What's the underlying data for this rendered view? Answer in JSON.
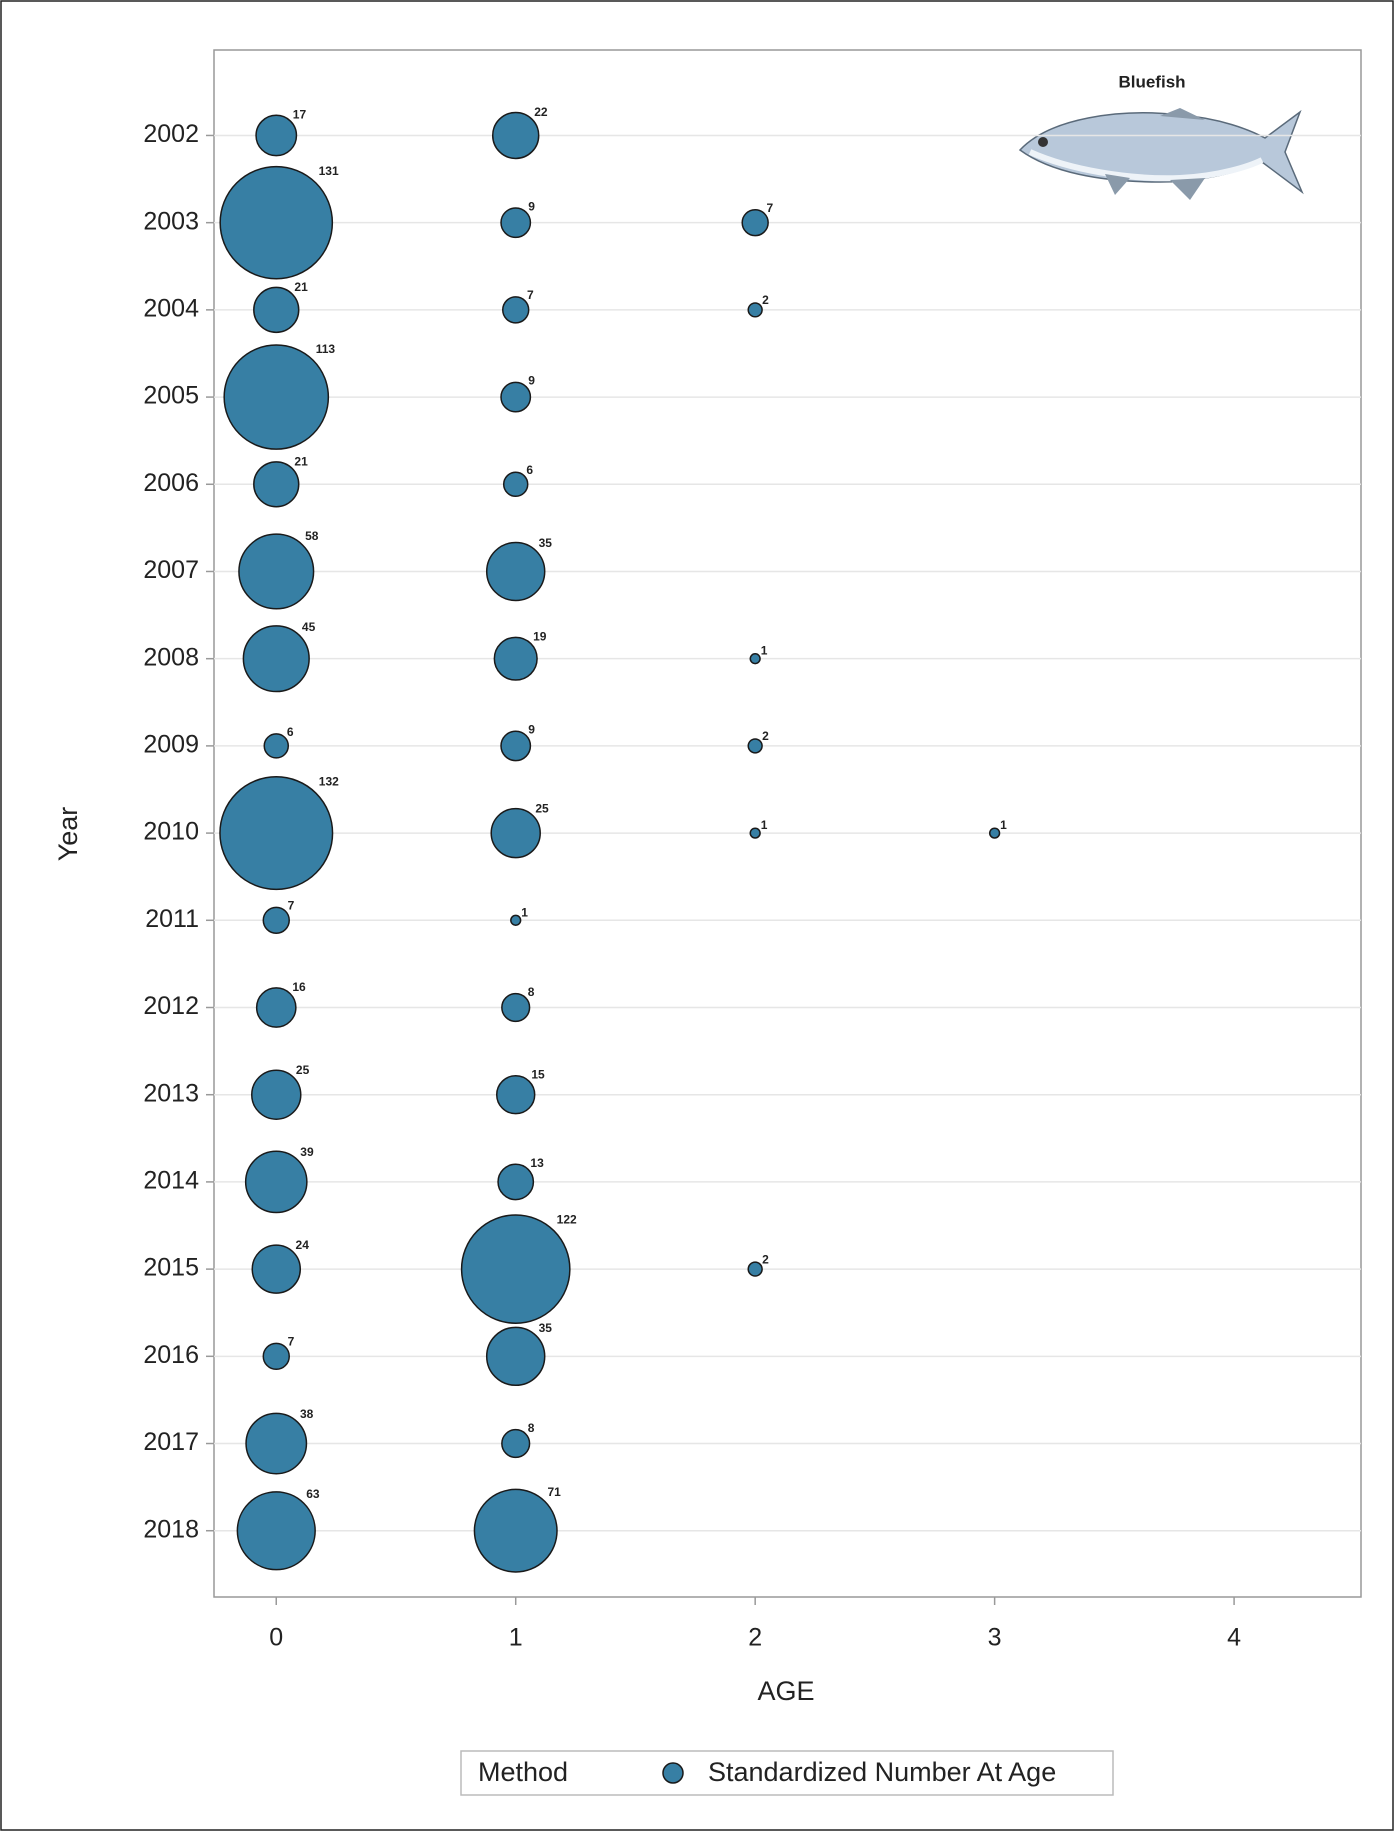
{
  "chart_data": {
    "type": "bubble",
    "annotation": "Bluefish",
    "x_label": "AGE",
    "y_label": "Year",
    "legend_title": "Method",
    "legend_position": "bottom",
    "xlim": [
      -0.26,
      4.53
    ],
    "xticks": [
      0,
      1,
      2,
      3,
      4
    ],
    "ylim": [
      2018.76,
      2001.02
    ],
    "yticks": [
      2002,
      2003,
      2004,
      2005,
      2006,
      2007,
      2008,
      2009,
      2010,
      2011,
      2012,
      2013,
      2014,
      2015,
      2016,
      2017,
      2018
    ],
    "grid": true,
    "series": [
      {
        "name": "Standardized Number At Age",
        "color": "#377fa4",
        "x": [
          0,
          1,
          0,
          1,
          2,
          0,
          1,
          2,
          0,
          1,
          0,
          1,
          0,
          1,
          0,
          1,
          2,
          0,
          1,
          2,
          0,
          1,
          2,
          3,
          0,
          1,
          0,
          1,
          0,
          1,
          0,
          1,
          0,
          1,
          2,
          0,
          1,
          0,
          1,
          0,
          1
        ],
        "y": [
          2002,
          2002,
          2003,
          2003,
          2003,
          2004,
          2004,
          2004,
          2005,
          2005,
          2006,
          2006,
          2007,
          2007,
          2008,
          2008,
          2008,
          2009,
          2009,
          2009,
          2010,
          2010,
          2010,
          2010,
          2011,
          2011,
          2012,
          2012,
          2013,
          2013,
          2014,
          2014,
          2015,
          2015,
          2015,
          2016,
          2016,
          2017,
          2017,
          2018,
          2018
        ],
        "sizes": [
          17,
          22,
          131,
          9,
          7,
          21,
          7,
          2,
          113,
          9,
          21,
          6,
          58,
          35,
          45,
          19,
          1,
          6,
          9,
          2,
          132,
          25,
          1,
          1,
          7,
          1,
          16,
          8,
          25,
          15,
          39,
          13,
          24,
          122,
          2,
          7,
          35,
          38,
          8,
          63,
          71
        ]
      }
    ]
  }
}
